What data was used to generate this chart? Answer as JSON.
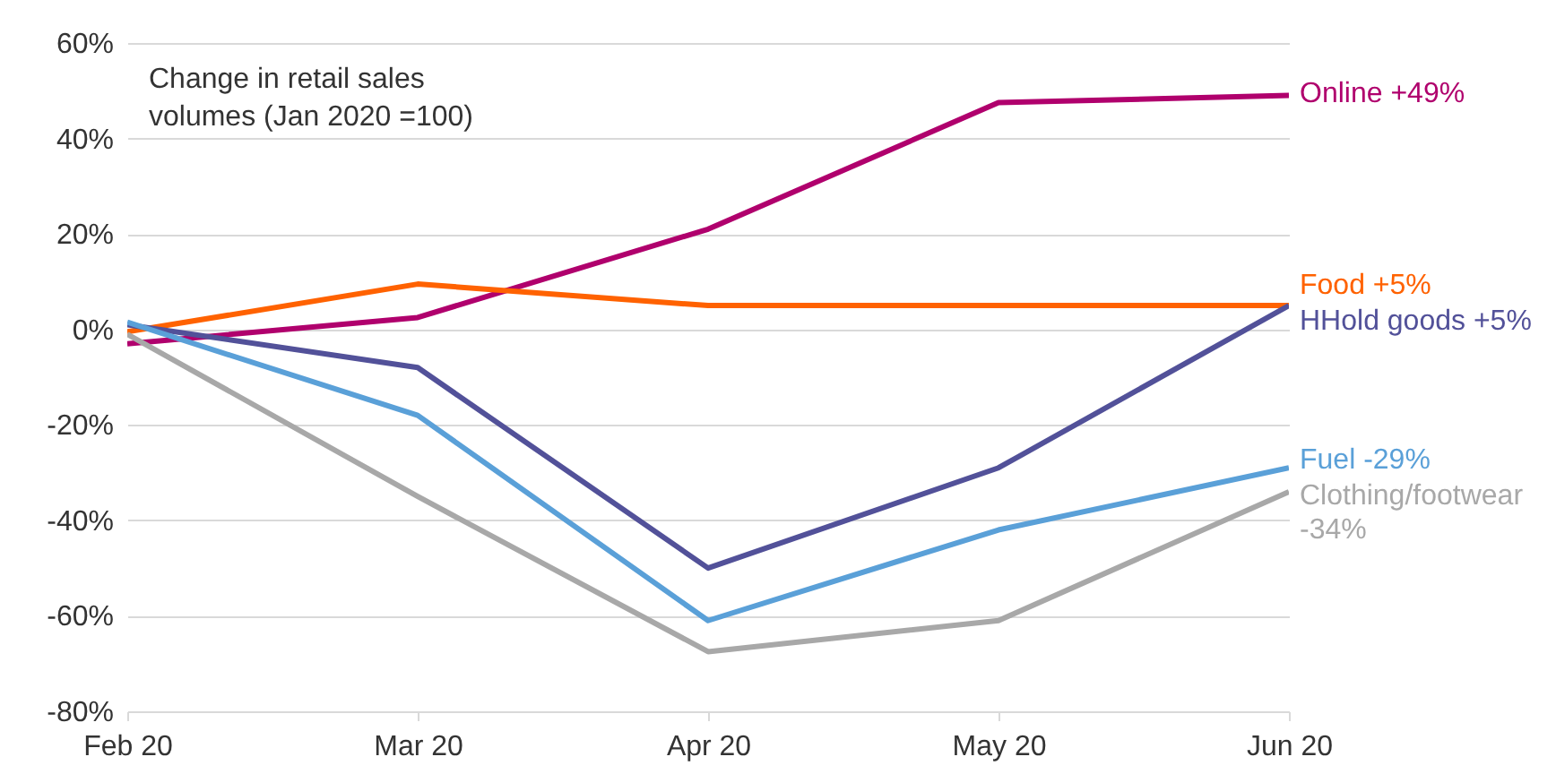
{
  "chart_data": {
    "type": "line",
    "annotations": [
      "Change in retail sales",
      "volumes (Jan 2020 =100)"
    ],
    "categories": [
      "Feb 20",
      "Mar 20",
      "Apr 20",
      "May 20",
      "Jun 20"
    ],
    "series": [
      {
        "name": "Online +49%",
        "color": "#b0006d",
        "values": [
          -3,
          2.5,
          21,
          47.5,
          49
        ]
      },
      {
        "name": "Food +5%",
        "color": "#ff6200",
        "values": [
          -0.5,
          9.5,
          5,
          5,
          5
        ]
      },
      {
        "name": "HHold goods +5%",
        "color": "#525199",
        "values": [
          1,
          -8,
          -50,
          -29,
          5
        ]
      },
      {
        "name": "Fuel -29%",
        "color": "#5aa0d8",
        "values": [
          1.5,
          -18,
          -61,
          -42,
          -29
        ]
      },
      {
        "name": "Clothing/footwear -34%",
        "color": "#a8a8a8",
        "values": [
          -1,
          -35,
          -67.5,
          -61,
          -34
        ]
      }
    ],
    "ylim": [
      -80,
      60
    ],
    "yticks": [
      {
        "value": -80,
        "label": "-80%"
      },
      {
        "value": -60,
        "label": "-60%"
      },
      {
        "value": -40,
        "label": "-40%"
      },
      {
        "value": -20,
        "label": "-20%"
      },
      {
        "value": 0,
        "label": "0%"
      },
      {
        "value": 20,
        "label": "20%"
      },
      {
        "value": 40,
        "label": "40%"
      },
      {
        "value": 60,
        "label": "60%"
      }
    ],
    "grid": "y"
  }
}
